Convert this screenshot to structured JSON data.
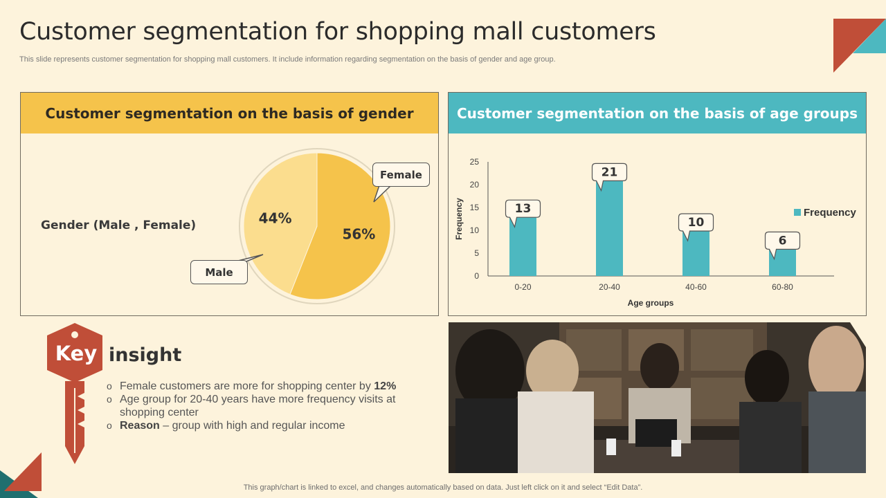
{
  "title": "Customer segmentation for shopping mall customers",
  "subtitle": "This slide represents customer segmentation for shopping mall customers. It include information regarding segmentation on the basis of gender and age group.",
  "gender_panel": {
    "heading": "Customer segmentation  on the basis of gender",
    "label": "Gender (Male , Female)"
  },
  "age_panel": {
    "heading": "Customer segmentation  on the basis of age groups"
  },
  "key_insight": {
    "key_word": "Key",
    "insight_word": "insight",
    "bullet_symbol": "o",
    "items": [
      {
        "text": "Female customers are more for shopping center by ",
        "bold": "12%"
      },
      {
        "text": "Age group for 20-40 years have more frequency visits at shopping center",
        "bold": ""
      },
      {
        "bold_lead": "Reason",
        "text": " – group with high and regular income"
      }
    ]
  },
  "footer": "This graph/chart is linked to excel,  and changes automatically based on data. Just left click on it and select “Edit Data”.",
  "colors": {
    "yellow": "#f5c34b",
    "light_yellow": "#fbdd8e",
    "teal": "#4db8c0",
    "rust": "#c04e38",
    "cream": "#fdf3dc"
  },
  "chart_data": [
    {
      "type": "pie",
      "labels": [
        "Female",
        "Male"
      ],
      "values": [
        56,
        44
      ],
      "value_labels": [
        "56%",
        "44%"
      ],
      "colors": [
        "#f5c34b",
        "#fbdd8e"
      ]
    },
    {
      "type": "bar",
      "categories": [
        "0-20",
        "20-40",
        "40-60",
        "60-80"
      ],
      "series": [
        {
          "name": "Frequency",
          "values": [
            13,
            21,
            10,
            6
          ]
        }
      ],
      "xlabel": "Age groups",
      "ylabel": "Frequency",
      "ylim": [
        0,
        25
      ],
      "yticks": [
        0,
        5,
        10,
        15,
        20,
        25
      ],
      "legend": "right",
      "grid": false,
      "color": "#4db8c0"
    }
  ]
}
